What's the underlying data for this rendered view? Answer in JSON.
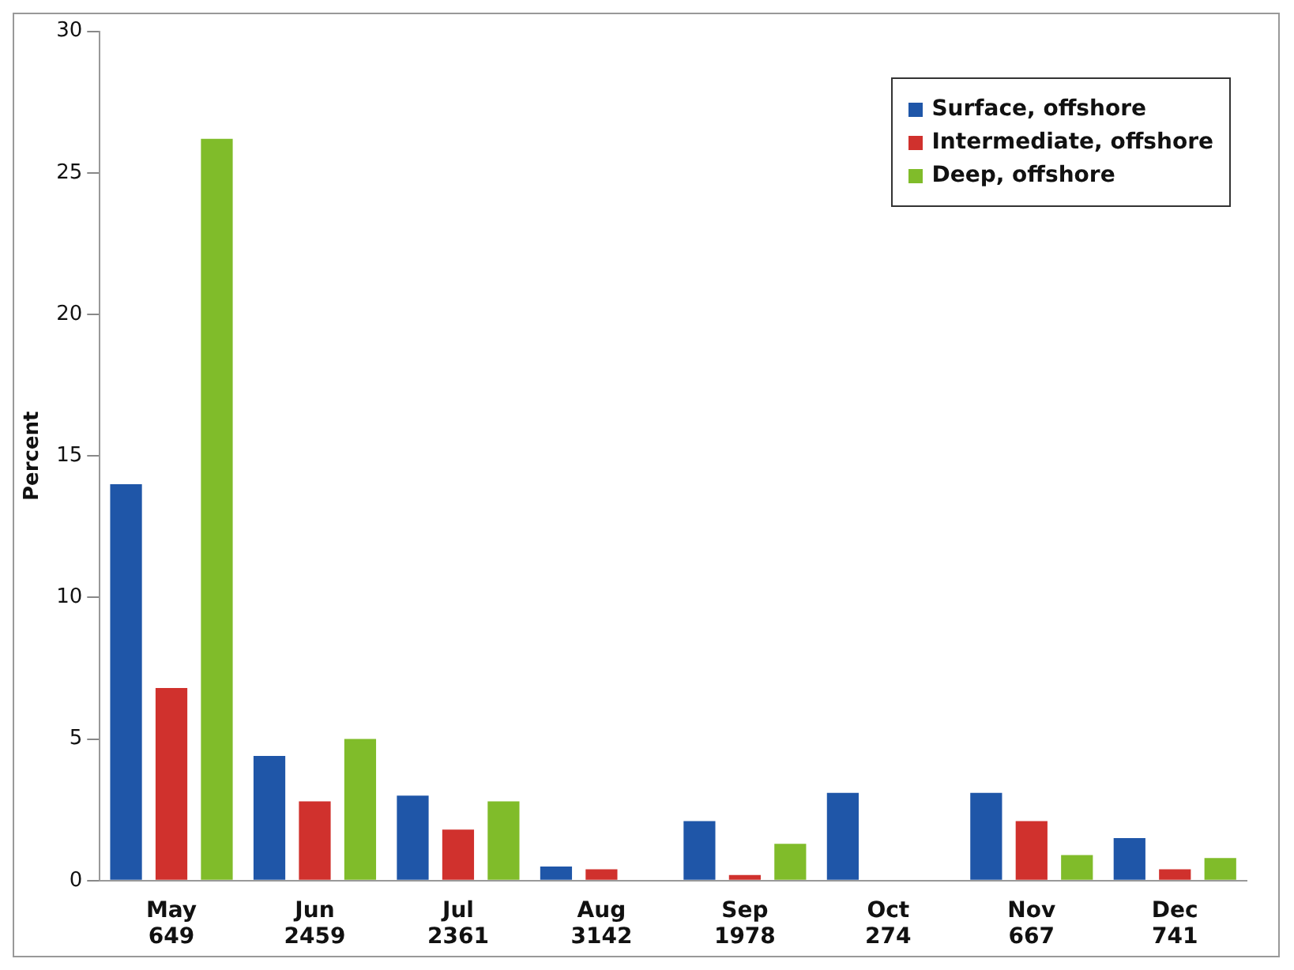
{
  "chart_data": {
    "type": "bar",
    "ylabel": "Percent",
    "categories": [
      "May 649",
      "Jun 2459",
      "Jul 2361",
      "Aug 3142",
      "Sep 1978",
      "Oct 274",
      "Nov 667",
      "Dec 741"
    ],
    "series": [
      {
        "name": "Surface, offshore",
        "color": "#1f56a8",
        "values": [
          14.0,
          4.4,
          3.0,
          0.5,
          2.1,
          3.1,
          3.1,
          1.5
        ]
      },
      {
        "name": "Intermediate, offshore",
        "color": "#d0312d",
        "values": [
          6.8,
          2.8,
          1.8,
          0.4,
          0.2,
          0,
          2.1,
          0.4
        ]
      },
      {
        "name": "Deep, offshore",
        "color": "#80bc2a",
        "values": [
          26.2,
          5.0,
          2.8,
          0,
          1.3,
          0,
          0.9,
          0.8
        ]
      }
    ],
    "ylim": [
      0,
      30
    ],
    "yticks": [
      0,
      5,
      10,
      15,
      20,
      25,
      30
    ],
    "grid": false,
    "legend": "top right"
  }
}
